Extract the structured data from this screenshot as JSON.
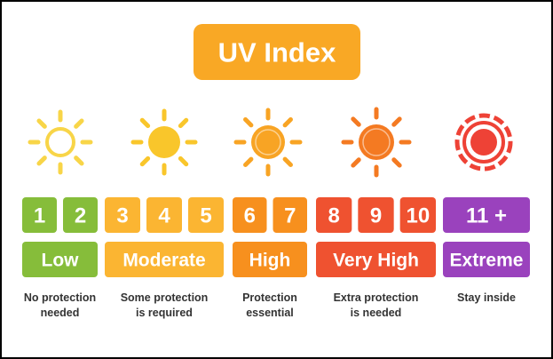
{
  "title": "UV Index",
  "levels": [
    {
      "numbers": [
        "1",
        "2"
      ],
      "label": "Low",
      "description": [
        "No protection",
        "needed"
      ],
      "color": "#86bd3a",
      "sun_color": "#f8d548"
    },
    {
      "numbers": [
        "3",
        "4",
        "5"
      ],
      "label": "Moderate",
      "description": [
        "Some protection",
        "is required"
      ],
      "color": "#fbb532",
      "sun_color": "#f9c62b"
    },
    {
      "numbers": [
        "6",
        "7"
      ],
      "label": "High",
      "description": [
        "Protection",
        "essential"
      ],
      "color": "#f7901e",
      "sun_color": "#f8a424"
    },
    {
      "numbers": [
        "8",
        "9",
        "10"
      ],
      "label": "Very High",
      "description": [
        "Extra protection",
        "is needed"
      ],
      "color": "#ef5230",
      "sun_color": "#f47a22"
    },
    {
      "numbers": [
        "11 +"
      ],
      "label": "Extreme",
      "description": [
        "Stay inside"
      ],
      "color": "#9a42bd",
      "sun_color": "#ee4236"
    }
  ]
}
